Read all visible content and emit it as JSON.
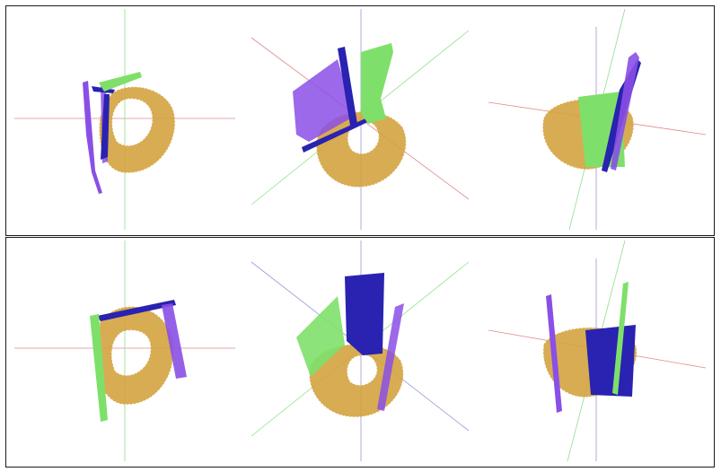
{
  "colors": {
    "background": "#ffffff",
    "frame": "#1a1a1a",
    "axis_x": "#e08a8a",
    "axis_y": "#8ee08a",
    "axis_z": "#9a9ad8",
    "floor_points": "#d4a440",
    "cluster_purple": "#8a4fe6",
    "cluster_navy": "#2a22b0",
    "cluster_green": "#7ee06a"
  },
  "rows": [
    {
      "views": [
        {
          "view_name": "top-left",
          "floor_ring": {
            "hole": "center"
          }
        },
        {
          "view_name": "top-middle",
          "floor_ring": {
            "hole": "center"
          }
        },
        {
          "view_name": "top-right",
          "floor_ring": {
            "hole": "none"
          }
        }
      ]
    },
    {
      "views": [
        {
          "view_name": "bottom-left",
          "floor_ring": {
            "hole": "center"
          }
        },
        {
          "view_name": "bottom-middle",
          "floor_ring": {
            "hole": "center"
          }
        },
        {
          "view_name": "bottom-right",
          "floor_ring": {
            "hole": "none"
          }
        }
      ]
    }
  ]
}
